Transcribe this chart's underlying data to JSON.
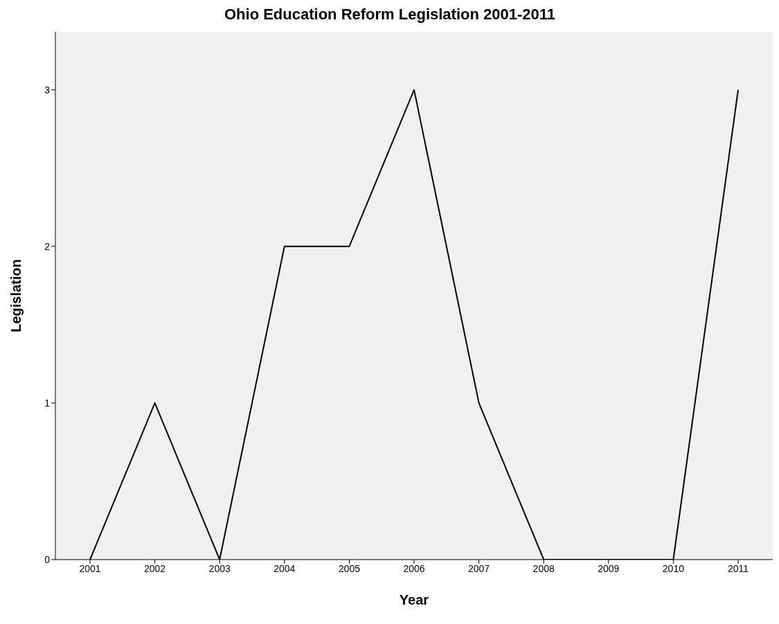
{
  "chart_data": {
    "type": "line",
    "title": "Ohio Education Reform Legislation 2001-2011",
    "xlabel": "Year",
    "ylabel": "Legislation",
    "categories": [
      "2001",
      "2002",
      "2003",
      "2004",
      "2005",
      "2006",
      "2007",
      "2008",
      "2009",
      "2010",
      "2011"
    ],
    "series": [
      {
        "color": "#000000",
        "values": [
          0,
          1,
          0,
          2,
          2,
          3,
          1,
          0,
          0,
          0,
          3
        ]
      }
    ],
    "ylim": [
      0,
      3.37
    ],
    "yticks": [
      0,
      1,
      2,
      3
    ],
    "grid": false,
    "marker": "none",
    "line_style": "solid"
  }
}
